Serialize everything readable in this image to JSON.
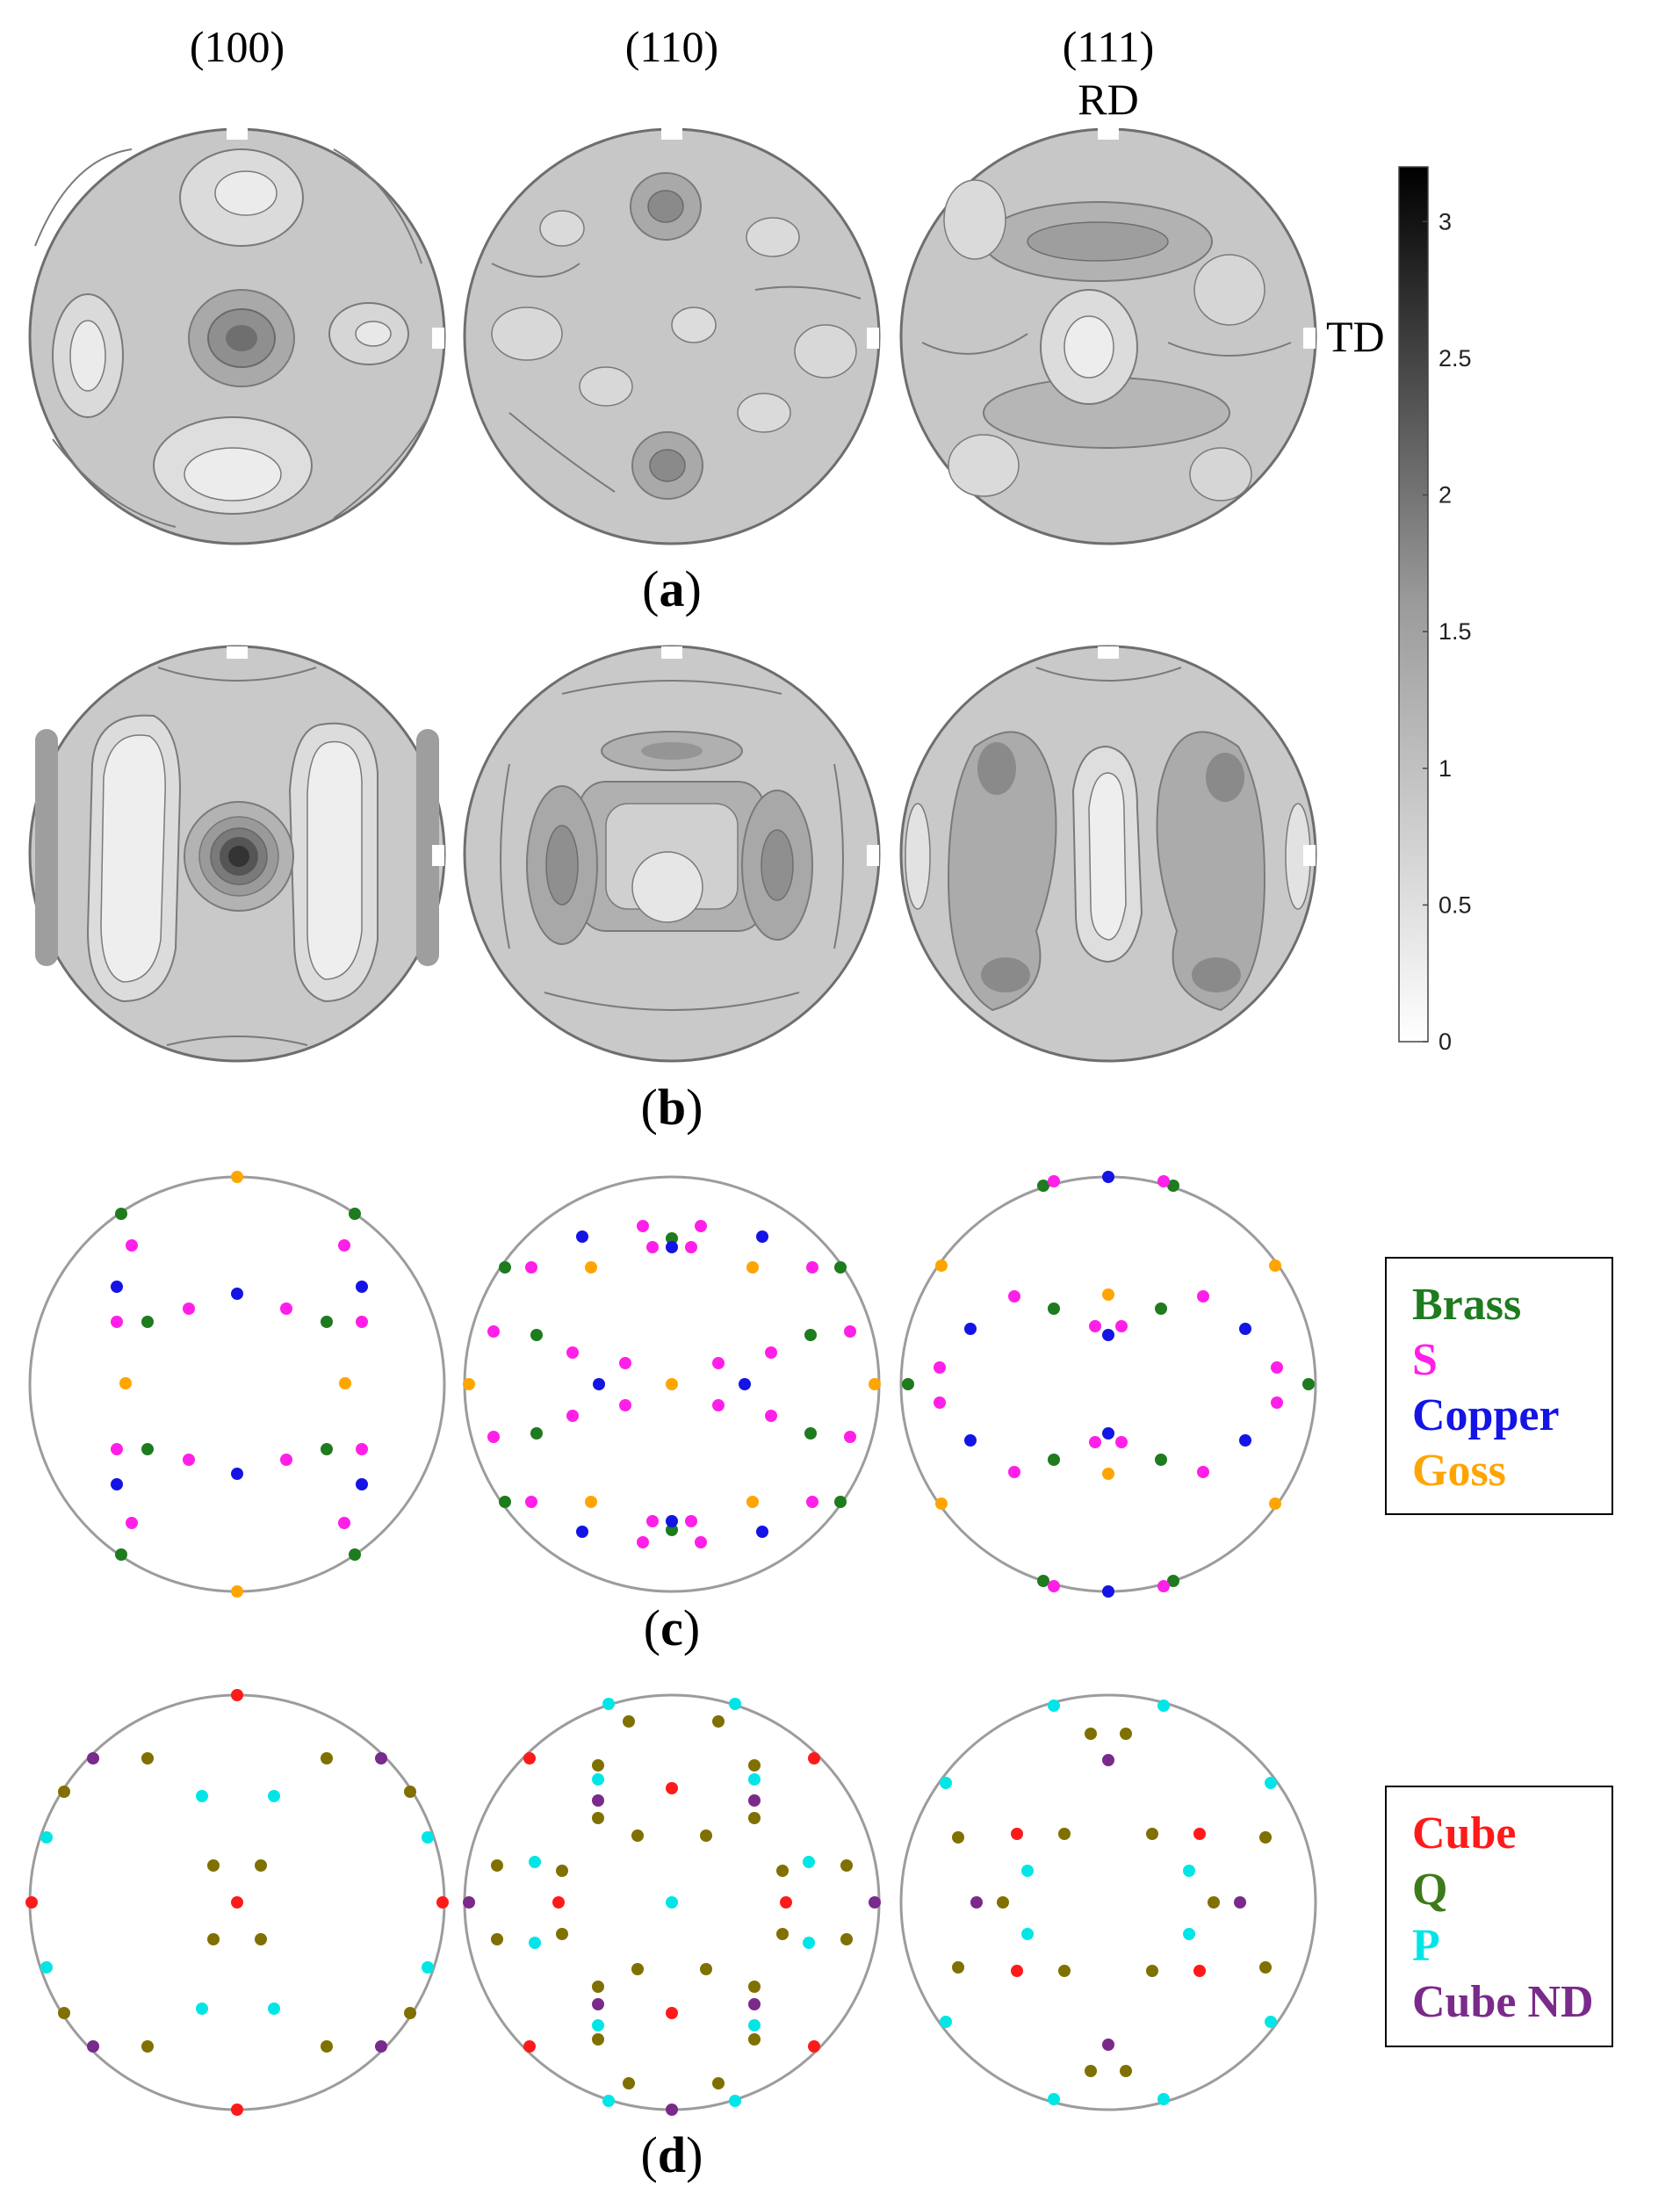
{
  "column_headers": [
    "(100)",
    "(110)",
    "(111)"
  ],
  "axis_labels": {
    "rd": "RD",
    "td": "TD"
  },
  "panel_labels": {
    "a": {
      "open": "(",
      "letter": "a",
      "close": ")"
    },
    "b": {
      "open": "(",
      "letter": "b",
      "close": ")"
    },
    "c": {
      "open": "(",
      "letter": "c",
      "close": ")"
    },
    "d": {
      "open": "(",
      "letter": "d",
      "close": ")"
    }
  },
  "colorbar": {
    "min": 0,
    "max": 3.2,
    "ticks": [
      "0",
      "0.5",
      "1",
      "1.5",
      "2",
      "2.5",
      "3"
    ],
    "colormap": "white-to-black"
  },
  "legend_c": [
    {
      "name": "Brass",
      "color": "#1e7b1e"
    },
    {
      "name": "S",
      "color": "#ff1fe8"
    },
    {
      "name": "Copper",
      "color": "#1414e6"
    },
    {
      "name": "Goss",
      "color": "#ffa500"
    }
  ],
  "legend_d": [
    {
      "name": "Cube",
      "color": "#ff1a1a"
    },
    {
      "name": "Q",
      "color": "#3d7a1a"
    },
    {
      "name": "P",
      "color": "#00e6e6"
    },
    {
      "name": "Cube ND",
      "color": "#7a2a8a"
    }
  ],
  "colors": {
    "pf_background": "#c9c9c9",
    "contour_line": "#7a7a7a",
    "circle_outline": "#6e6e6e",
    "ideal_circle": "#a0a0a0",
    "q_dot": "#807000"
  }
}
